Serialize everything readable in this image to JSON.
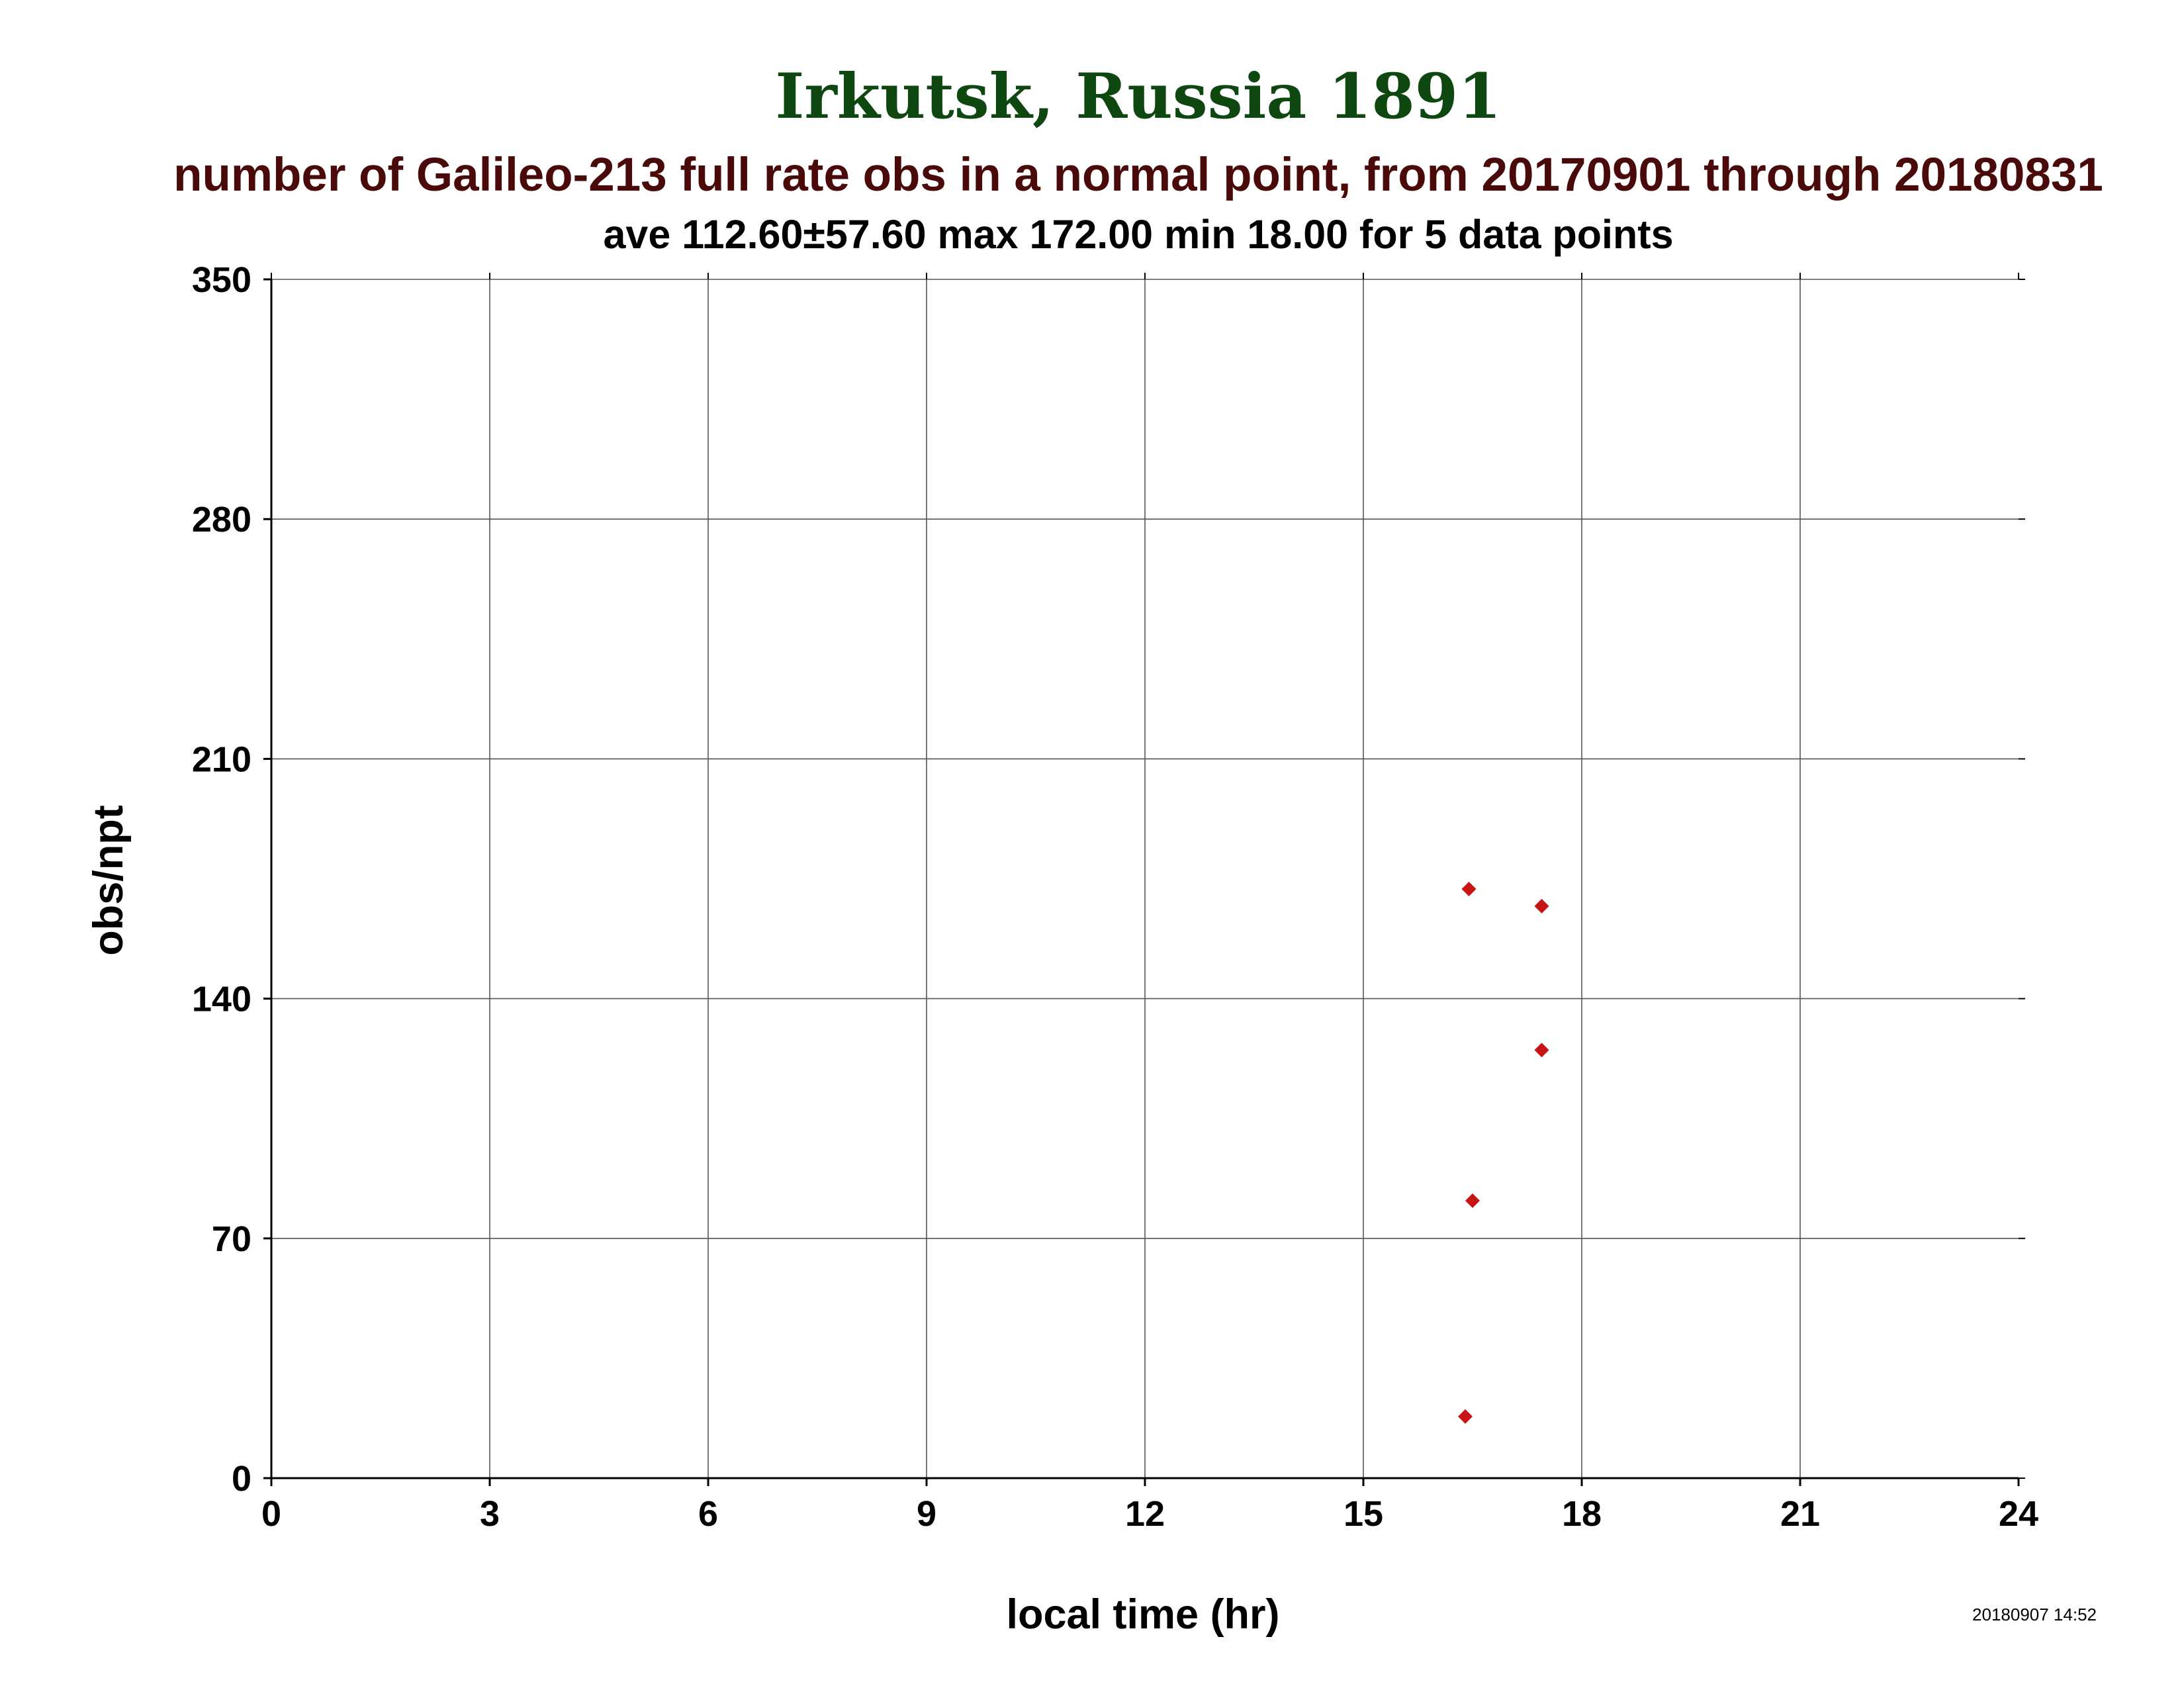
{
  "colors": {
    "title": "#0f4711",
    "subtitle": "#4a0a0a",
    "stats": "#000000",
    "marker": "#c81414",
    "grid": "#555555",
    "axis": "#000000"
  },
  "timestamp": "20180907 14:52",
  "chart_data": {
    "type": "scatter",
    "title": "Irkutsk, Russia 1891",
    "subtitle": "number of Galileo-213 full rate obs in a normal point, from 20170901 through 20180831",
    "stats": "ave 112.60±57.60 max 172.00 min 18.00 for 5 data points",
    "xlabel": "local time (hr)",
    "ylabel": "obs/npt",
    "xlim": [
      0,
      24
    ],
    "ylim": [
      0,
      350
    ],
    "xticks": [
      0,
      3,
      6,
      9,
      12,
      15,
      18,
      21,
      24
    ],
    "yticks": [
      0,
      70,
      140,
      210,
      280,
      350
    ],
    "grid": true,
    "marker": "diamond",
    "points": [
      {
        "x": 16.45,
        "y": 172
      },
      {
        "x": 17.45,
        "y": 167
      },
      {
        "x": 17.45,
        "y": 125
      },
      {
        "x": 16.5,
        "y": 81
      },
      {
        "x": 16.4,
        "y": 18
      }
    ]
  }
}
